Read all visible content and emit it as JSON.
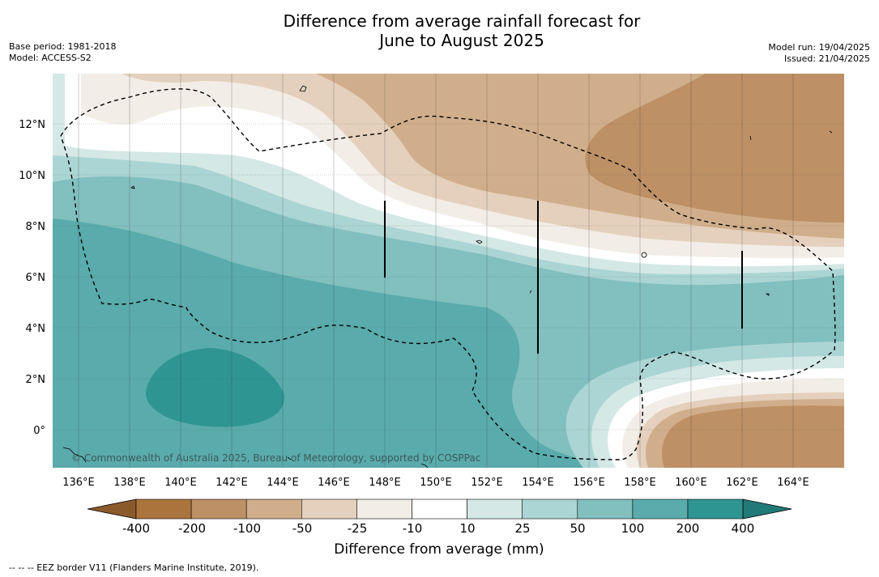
{
  "header": {
    "title_line1": "Difference from average rainfall forecast for",
    "title_line2": "June to August 2025",
    "base_period": "Base period: 1981-2018",
    "model": "Model: ACCESS-S2",
    "model_run": "Model run: 19/04/2025",
    "issued": "Issued: 21/04/2025"
  },
  "map": {
    "lat_labels": [
      "12°N",
      "10°N",
      "8°N",
      "6°N",
      "4°N",
      "2°N",
      "0°"
    ],
    "lon_labels": [
      "136°E",
      "138°E",
      "140°E",
      "142°E",
      "144°E",
      "146°E",
      "148°E",
      "150°E",
      "152°E",
      "154°E",
      "156°E",
      "158°E",
      "160°E",
      "162°E",
      "164°E"
    ],
    "copyright": "© Commonwealth of Australia 2025, Bureau of Meteorology, supported by COSPPac"
  },
  "colorbar": {
    "title": "Difference from average (mm)",
    "tick_labels": [
      "-400",
      "-200",
      "-100",
      "-50",
      "-25",
      "-10",
      "10",
      "25",
      "50",
      "100",
      "200",
      "400"
    ],
    "colors": [
      "#8b5a2b",
      "#aa743c",
      "#bd9066",
      "#d1ae8b",
      "#e4d0bc",
      "#f2ede6",
      "#ffffff",
      "#d4e8e6",
      "#abd5d4",
      "#82bfbf",
      "#5aabab",
      "#2e9592",
      "#217a78"
    ]
  },
  "footnote": "--  --  -- EEZ border V11 (Flanders Marine Institute, 2019)."
}
